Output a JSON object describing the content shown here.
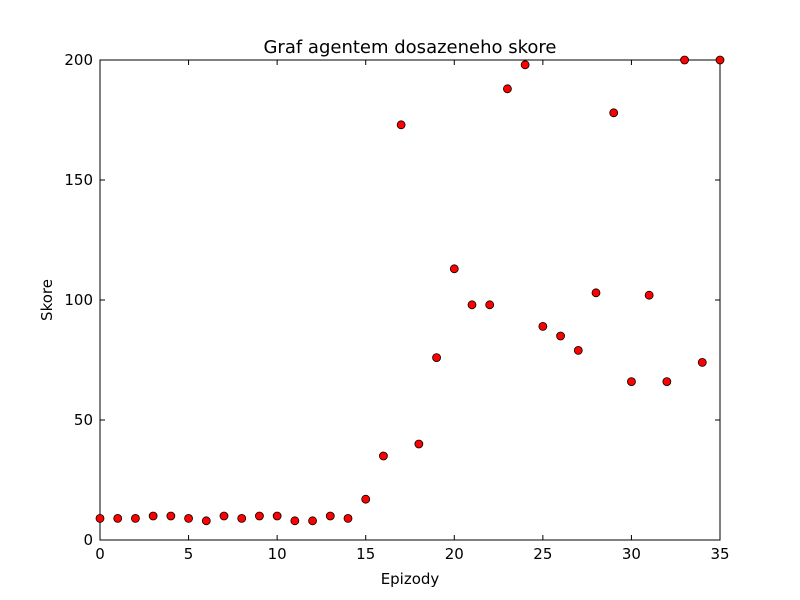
{
  "chart_data": {
    "type": "scatter",
    "title": "Graf agentem dosazeneho skore",
    "xlabel": "Epizody",
    "ylabel": "Skore",
    "xlim": [
      0,
      35
    ],
    "ylim": [
      0,
      200
    ],
    "xticks": [
      0,
      5,
      10,
      15,
      20,
      25,
      30,
      35
    ],
    "yticks": [
      0,
      50,
      100,
      150,
      200
    ],
    "grid": false,
    "marker_color": "#ff0000",
    "marker_edge_color": "#000000",
    "series": [
      {
        "x": [
          0,
          1,
          2,
          3,
          4,
          5,
          6,
          7,
          8,
          9,
          10,
          11,
          12,
          13,
          14,
          15,
          16,
          17,
          18,
          19,
          20,
          21,
          22,
          23,
          24,
          25,
          26,
          27,
          28,
          29,
          30,
          31,
          32,
          33,
          34,
          35
        ],
        "y": [
          9,
          9,
          9,
          10,
          10,
          9,
          8,
          10,
          9,
          10,
          10,
          8,
          8,
          10,
          9,
          17,
          35,
          173,
          40,
          76,
          113,
          98,
          98,
          188,
          198,
          89,
          85,
          79,
          103,
          178,
          66,
          102,
          66,
          200,
          74,
          200
        ]
      }
    ]
  }
}
